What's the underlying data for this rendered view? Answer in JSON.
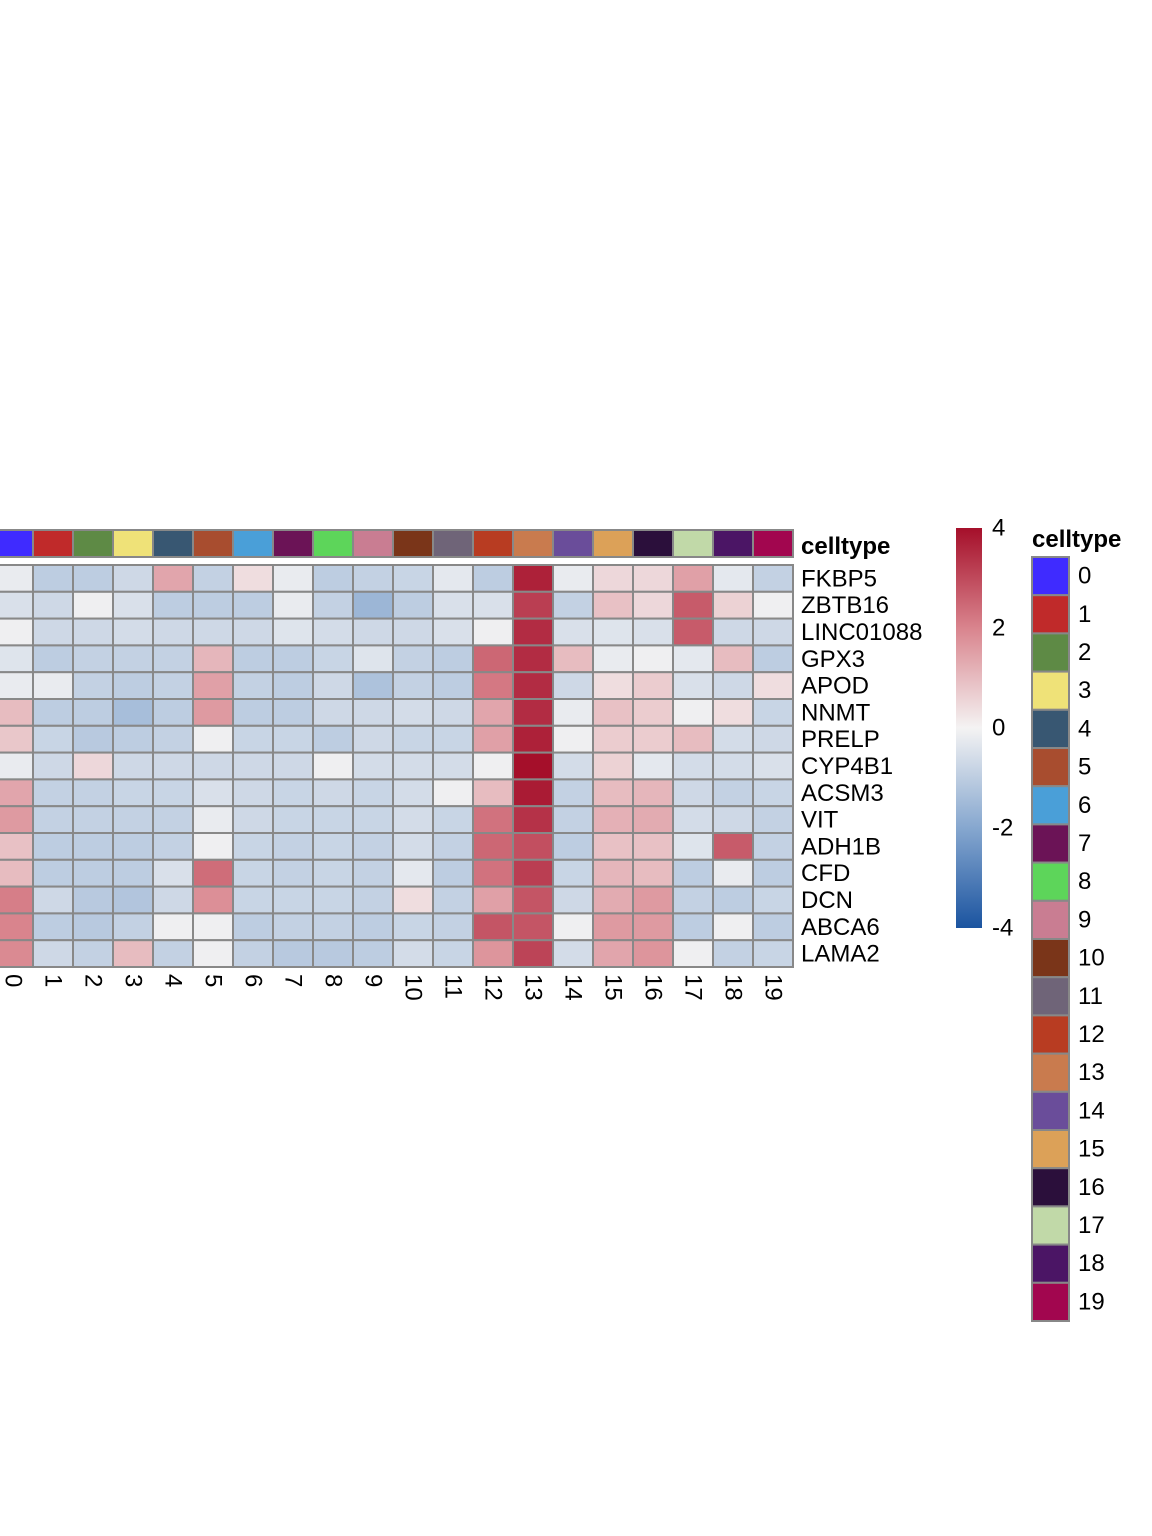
{
  "chart_data": {
    "type": "heatmap",
    "title": "",
    "xlabel": "",
    "ylabel": "",
    "columns": [
      "0",
      "1",
      "2",
      "3",
      "4",
      "5",
      "6",
      "7",
      "8",
      "9",
      "10",
      "11",
      "12",
      "13",
      "14",
      "15",
      "16",
      "17",
      "18",
      "19"
    ],
    "rows": [
      "FKBP5",
      "ZBTB16",
      "LINC01088",
      "GPX3",
      "APOD",
      "NNMT",
      "PRELP",
      "CYP4B1",
      "ACSM3",
      "VIT",
      "ADH1B",
      "CFD",
      "DCN",
      "ABCA6",
      "LAMA2"
    ],
    "values": [
      [
        -0.2,
        -1.0,
        -1.0,
        -0.7,
        1.4,
        -0.9,
        0.4,
        -0.2,
        -1.0,
        -0.9,
        -0.8,
        -0.3,
        -1.0,
        3.7,
        -0.2,
        0.5,
        0.5,
        1.5,
        -0.3,
        -0.9
      ],
      [
        -0.5,
        -0.7,
        -0.1,
        -0.5,
        -1.0,
        -1.0,
        -1.0,
        -0.2,
        -0.9,
        -1.6,
        -1.0,
        -0.5,
        -0.5,
        3.2,
        -0.9,
        0.9,
        0.5,
        2.7,
        0.6,
        -0.1
      ],
      [
        -0.1,
        -0.7,
        -0.7,
        -0.6,
        -0.7,
        -0.7,
        -0.7,
        -0.4,
        -0.6,
        -0.7,
        -0.7,
        -0.5,
        -0.1,
        3.5,
        -0.5,
        -0.4,
        -0.5,
        2.7,
        -0.7,
        -0.7
      ],
      [
        -0.4,
        -1.0,
        -0.9,
        -0.9,
        -0.9,
        1.1,
        -1.0,
        -1.0,
        -0.8,
        -0.4,
        -0.9,
        -1.0,
        2.5,
        3.5,
        1.0,
        -0.2,
        -0.1,
        -0.3,
        1.0,
        -1.0
      ],
      [
        -0.2,
        -0.2,
        -0.9,
        -1.0,
        -0.9,
        1.5,
        -0.9,
        -1.0,
        -0.7,
        -1.3,
        -0.9,
        -1.0,
        2.2,
        3.5,
        -0.7,
        0.4,
        0.7,
        -0.5,
        -0.7,
        0.4
      ],
      [
        1.0,
        -1.0,
        -1.0,
        -1.4,
        -1.0,
        1.6,
        -1.0,
        -1.0,
        -0.7,
        -0.7,
        -0.6,
        -0.7,
        1.4,
        3.5,
        -0.2,
        0.9,
        0.7,
        -0.1,
        0.4,
        -0.8
      ],
      [
        0.8,
        -0.8,
        -1.1,
        -1.0,
        -0.9,
        -0.1,
        -0.8,
        -0.8,
        -1.0,
        -0.7,
        -0.8,
        -0.8,
        1.5,
        3.7,
        -0.1,
        0.7,
        0.7,
        1.0,
        -0.6,
        -0.7
      ],
      [
        -0.2,
        -0.7,
        0.5,
        -0.7,
        -0.7,
        -0.7,
        -0.7,
        -0.7,
        -0.1,
        -0.6,
        -0.6,
        -0.6,
        -0.1,
        4.3,
        -0.6,
        0.6,
        -0.3,
        -0.6,
        -0.6,
        -0.5
      ],
      [
        1.4,
        -0.9,
        -0.9,
        -0.8,
        -0.8,
        -0.5,
        -0.7,
        -0.8,
        -0.7,
        -0.8,
        -0.6,
        -0.1,
        1.0,
        3.8,
        -0.9,
        1.0,
        1.1,
        -0.7,
        -0.9,
        -0.8
      ],
      [
        1.6,
        -0.9,
        -0.9,
        -0.9,
        -0.9,
        -0.2,
        -0.7,
        -0.8,
        -0.8,
        -0.8,
        -0.6,
        -0.8,
        2.3,
        3.4,
        -0.9,
        1.2,
        1.3,
        -0.6,
        -0.7,
        -0.9
      ],
      [
        0.9,
        -1.0,
        -1.0,
        -1.0,
        -0.9,
        -0.1,
        -0.8,
        -0.9,
        -0.8,
        -0.9,
        -0.6,
        -0.9,
        2.5,
        2.9,
        -1.0,
        0.9,
        0.9,
        -0.4,
        2.7,
        -0.9
      ],
      [
        1.0,
        -1.0,
        -1.0,
        -1.0,
        -0.5,
        2.4,
        -0.8,
        -0.9,
        -0.8,
        -0.9,
        -0.3,
        -1.0,
        2.3,
        3.2,
        -0.8,
        1.1,
        1.0,
        -1.0,
        -0.2,
        -1.0
      ],
      [
        2.1,
        -0.7,
        -1.1,
        -1.2,
        -0.7,
        1.8,
        -0.8,
        -0.8,
        -0.8,
        -0.9,
        0.4,
        -0.9,
        1.5,
        2.8,
        -0.7,
        1.3,
        1.6,
        -0.9,
        -1.0,
        -0.8
      ],
      [
        2.0,
        -1.0,
        -1.1,
        -0.9,
        -0.1,
        -0.1,
        -1.0,
        -0.9,
        -0.9,
        -1.0,
        -0.8,
        -0.9,
        2.8,
        2.8,
        -0.1,
        1.6,
        1.6,
        -1.0,
        -0.1,
        -1.0
      ],
      [
        1.9,
        -0.7,
        -0.9,
        1.0,
        -0.9,
        -0.1,
        -0.9,
        -1.1,
        -1.1,
        -1.0,
        -0.6,
        -0.8,
        1.7,
        3.1,
        -0.6,
        1.4,
        1.7,
        -0.1,
        -0.9,
        -0.8
      ]
    ],
    "annotation": {
      "title": "celltype",
      "colors": [
        "#3f2bff",
        "#c02a2a",
        "#5e8a45",
        "#efe278",
        "#385772",
        "#a84d2f",
        "#4a9fd8",
        "#6b1356",
        "#5dd55a",
        "#c97d92",
        "#7a3519",
        "#6f6478",
        "#b83c22",
        "#c97b4e",
        "#6a4d9a",
        "#dca158",
        "#2b0f3b",
        "#c1d9a8",
        "#4b1565",
        "#a2064f"
      ]
    },
    "colorbar": {
      "range": [
        -4,
        4
      ],
      "ticks": [
        4,
        2,
        0,
        -2,
        -4
      ]
    }
  }
}
